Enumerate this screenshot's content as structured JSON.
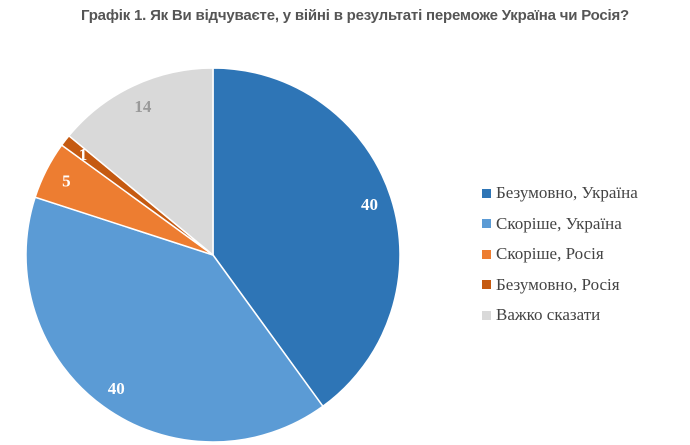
{
  "chart_data": {
    "type": "pie",
    "title": "Графік 1. Як Ви відчуваєте, у війні в результаті переможе Україна чи Росія?",
    "legend_position": "right",
    "slices": [
      {
        "label": "Безумовно, Україна",
        "value": 40,
        "color": "#2e75b6"
      },
      {
        "label": "Скоріше, Україна",
        "value": 40,
        "color": "#5b9bd5"
      },
      {
        "label": "Скоріше, Росія",
        "value": 5,
        "color": "#ed7d31"
      },
      {
        "label": "Безумовно, Росія",
        "value": 1,
        "color": "#c55a11"
      },
      {
        "label": "Важко сказати",
        "value": 14,
        "color": "#d9d9d9"
      }
    ]
  }
}
